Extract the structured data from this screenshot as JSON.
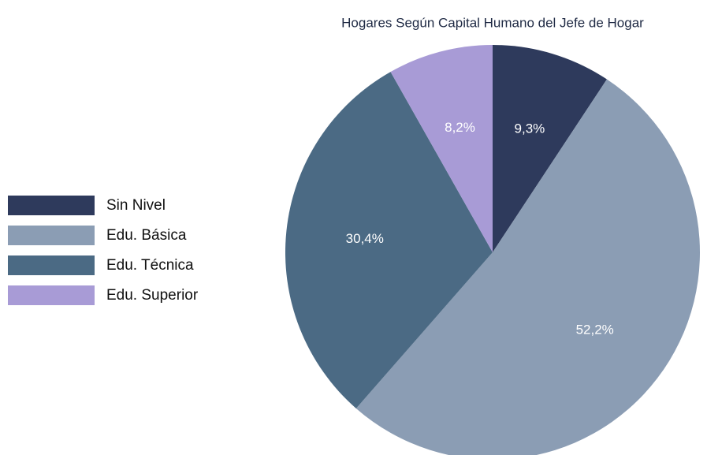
{
  "chart_data": {
    "type": "pie",
    "title": "Hogares Según Capital Humano del Jefe de Hogar",
    "categories": [
      "Sin Nivel",
      "Edu. Básica",
      "Edu. Técnica",
      "Edu. Superior"
    ],
    "values": [
      9.3,
      52.2,
      30.4,
      8.2
    ],
    "value_labels": [
      "9,3%",
      "52,2%",
      "30,4%",
      "8,2%"
    ],
    "colors": [
      "#2e3a5c",
      "#8b9db4",
      "#4b6a84",
      "#a89bd6"
    ],
    "legend": "left"
  }
}
